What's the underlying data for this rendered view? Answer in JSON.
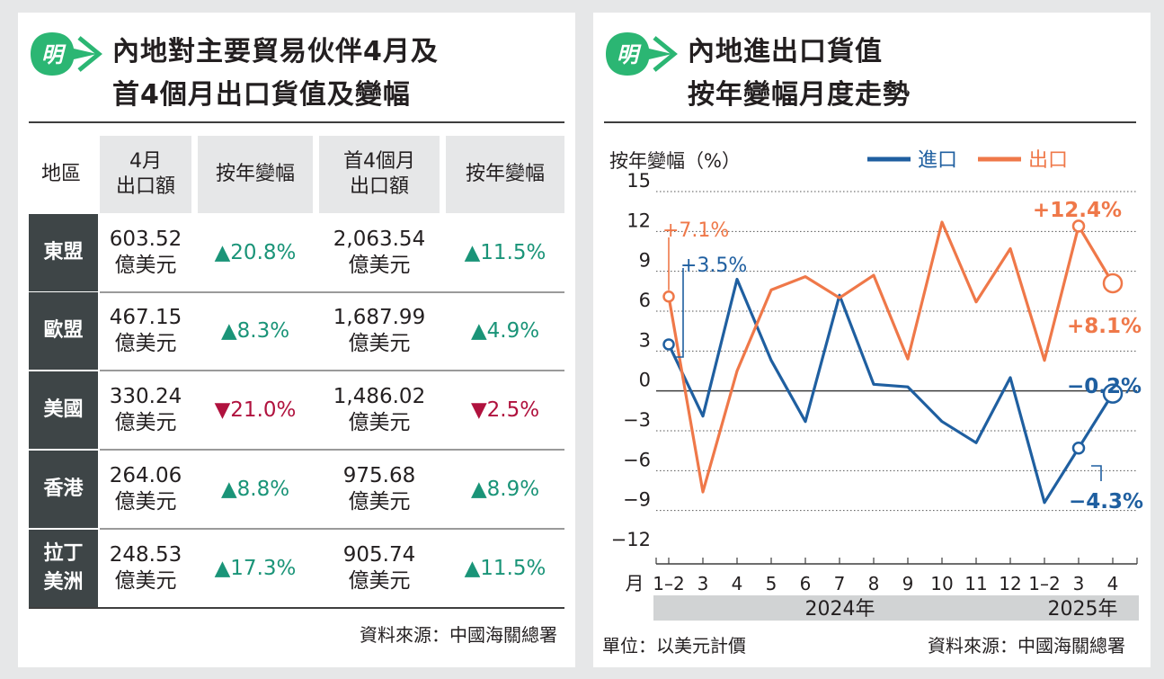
{
  "left": {
    "title_line1": "內地對主要貿易伙伴4月及",
    "title_line2": "首4個月出口貨值及變幅",
    "logo_char": "明",
    "headers": [
      "地區",
      "4月\n出口額",
      "按年變幅",
      "首4個月\n出口額",
      "按年變幅"
    ],
    "rows": [
      {
        "region": "東盟",
        "apr_value": "603.52",
        "apr_unit": "億美元",
        "apr_change": "▲20.8%",
        "apr_dir": "up",
        "ytd_value": "2,063.54",
        "ytd_unit": "億美元",
        "ytd_change": "▲11.5%",
        "ytd_dir": "up"
      },
      {
        "region": "歐盟",
        "apr_value": "467.15",
        "apr_unit": "億美元",
        "apr_change": "▲8.3%",
        "apr_dir": "up",
        "ytd_value": "1,687.99",
        "ytd_unit": "億美元",
        "ytd_change": "▲4.9%",
        "ytd_dir": "up"
      },
      {
        "region": "美國",
        "apr_value": "330.24",
        "apr_unit": "億美元",
        "apr_change": "▼21.0%",
        "apr_dir": "down",
        "ytd_value": "1,486.02",
        "ytd_unit": "億美元",
        "ytd_change": "▼2.5%",
        "ytd_dir": "down"
      },
      {
        "region": "香港",
        "apr_value": "264.06",
        "apr_unit": "億美元",
        "apr_change": "▲8.8%",
        "apr_dir": "up",
        "ytd_value": "975.68",
        "ytd_unit": "億美元",
        "ytd_change": "▲8.9%",
        "ytd_dir": "up"
      },
      {
        "region": "拉丁\n美洲",
        "apr_value": "248.53",
        "apr_unit": "億美元",
        "apr_change": "▲17.3%",
        "apr_dir": "up",
        "ytd_value": "905.74",
        "ytd_unit": "億美元",
        "ytd_change": "▲11.5%",
        "ytd_dir": "up"
      }
    ],
    "source": "資料來源：中國海關總署"
  },
  "right": {
    "title_line1": "內地進出口貨值",
    "title_line2": "按年變幅月度走勢",
    "logo_char": "明",
    "unit_note": "單位：以美元計價",
    "source": "資料來源：中國海關總署"
  },
  "colors": {
    "import": "#1f5fa0",
    "export": "#ef7849",
    "up": "#1a9478",
    "down": "#b0123e",
    "logo_green": "#2bb673"
  },
  "chart_data": {
    "type": "line",
    "ylabel": "按年變幅（%）",
    "ylim": [
      -12,
      15
    ],
    "yticks": [
      15,
      12,
      9,
      6,
      3,
      0,
      -3,
      -6,
      -9,
      -12
    ],
    "ytick_labels": [
      "15",
      "12",
      "9",
      "6",
      "3",
      "0",
      "−3",
      "−6",
      "−9",
      "−12"
    ],
    "x_prefix": "月",
    "categories": [
      "1–2",
      "3",
      "4",
      "5",
      "6",
      "7",
      "8",
      "9",
      "10",
      "11",
      "12",
      "1–2",
      "3",
      "4"
    ],
    "year_labels": [
      {
        "label": "2024年",
        "from": 0,
        "to": 10
      },
      {
        "label": "2025年",
        "from": 11,
        "to": 13
      }
    ],
    "series": [
      {
        "name": "進口",
        "key": "import",
        "values": [
          3.5,
          -1.9,
          8.4,
          2.3,
          -2.3,
          7.2,
          0.5,
          0.3,
          -2.3,
          -3.9,
          1.0,
          -8.4,
          -4.3,
          -0.2
        ]
      },
      {
        "name": "出口",
        "key": "export",
        "values": [
          7.1,
          -7.6,
          1.5,
          7.6,
          8.6,
          7.0,
          8.7,
          2.4,
          12.7,
          6.7,
          10.7,
          2.3,
          12.4,
          8.1
        ]
      }
    ],
    "annotations": [
      {
        "series": "export",
        "index": 0,
        "text": "+7.1%",
        "weight": "normal"
      },
      {
        "series": "import",
        "index": 0,
        "text": "+3.5%",
        "weight": "normal"
      },
      {
        "series": "export",
        "index": 12,
        "text": "+12.4%",
        "weight": "bold"
      },
      {
        "series": "export",
        "index": 13,
        "text": "+8.1%",
        "weight": "bold"
      },
      {
        "series": "import",
        "index": 13,
        "text": "−0.2%",
        "weight": "bold"
      },
      {
        "series": "import",
        "index": 12,
        "text": "−4.3%",
        "weight": "bold"
      }
    ]
  }
}
